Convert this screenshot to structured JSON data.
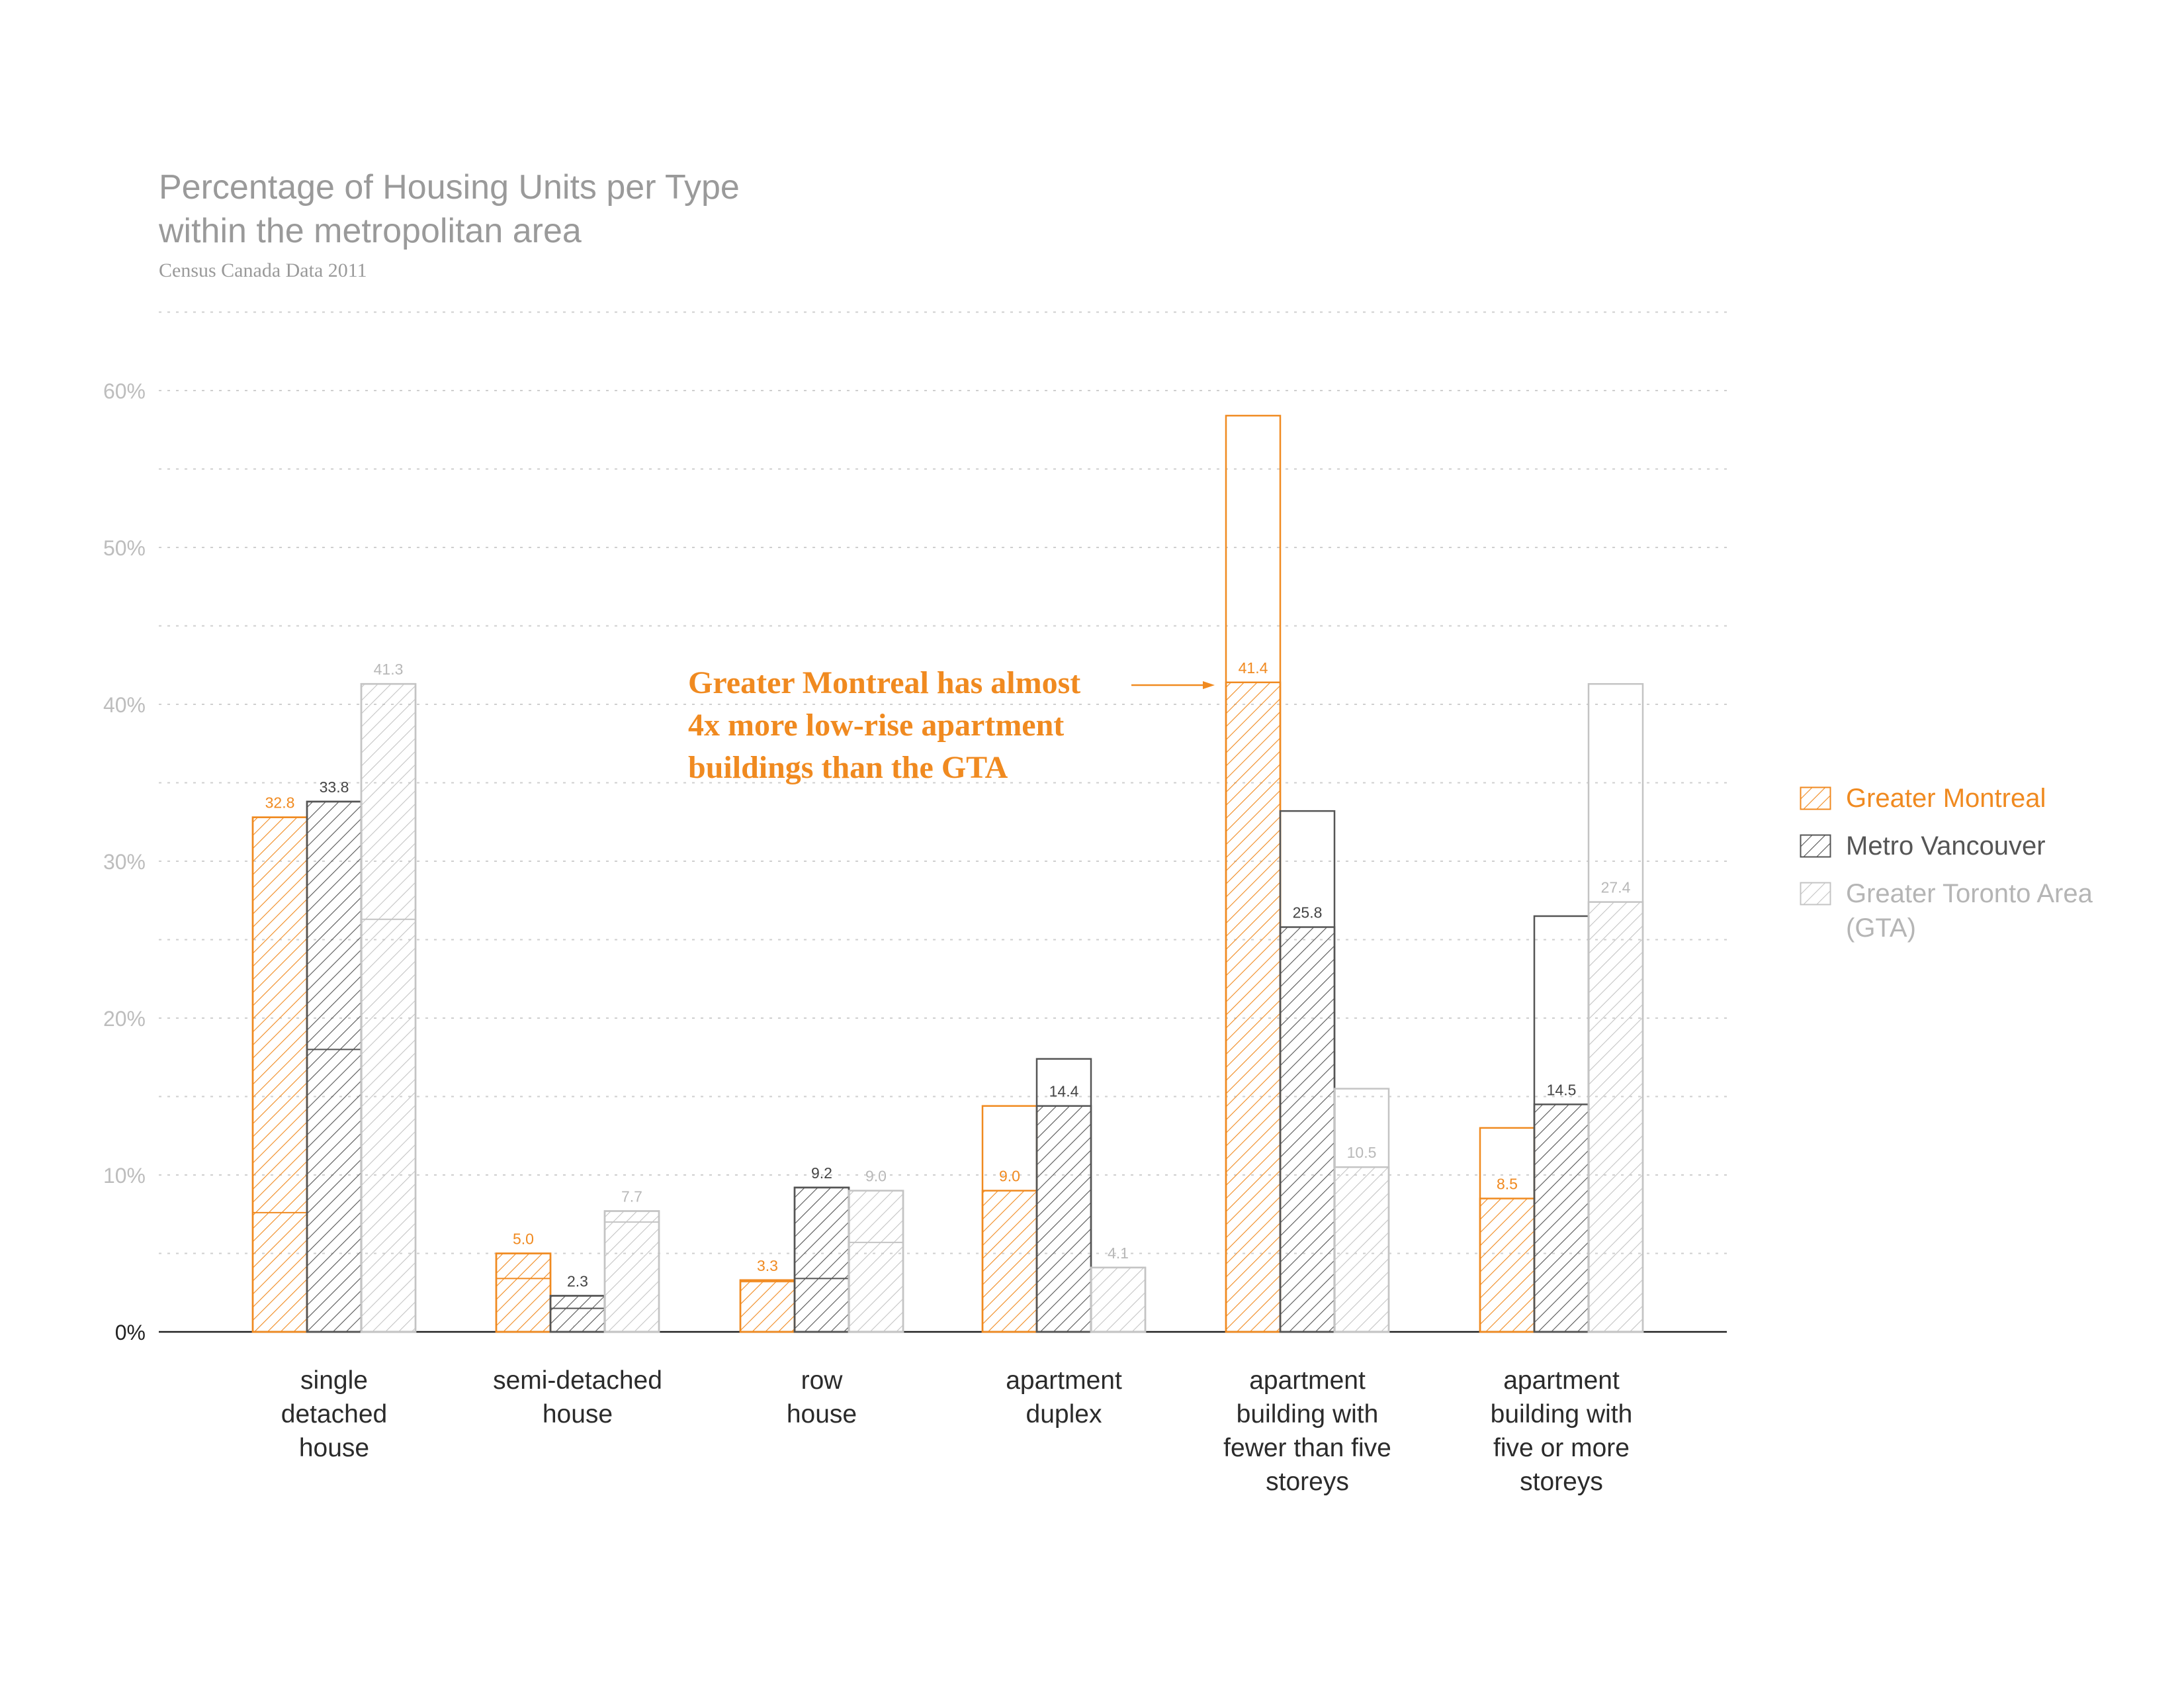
{
  "title_lines": [
    "Percentage of Housing Units per Type",
    "within the metropolitan area"
  ],
  "subtitle": "Census Canada Data 2011",
  "annotation_lines": [
    "Greater Montreal has almost",
    "4x more low-rise apartment",
    "buildings than the GTA"
  ],
  "colors": {
    "montreal": "#f08a20",
    "vancouver": "#555555",
    "toronto": "#c4c4c4",
    "gridline": "#cfcfcf",
    "axis": "#222222",
    "ticklabel": "#bdbdbd",
    "text": "#333333"
  },
  "legend": [
    {
      "label_lines": [
        "Greater Montreal"
      ],
      "color": "#f08a20"
    },
    {
      "label_lines": [
        "Metro Vancouver"
      ],
      "color": "#555555"
    },
    {
      "label_lines": [
        "Greater Toronto Area",
        "(GTA)"
      ],
      "color": "#c4c4c4"
    }
  ],
  "chart_data": {
    "type": "bar",
    "title": "Percentage of Housing Units per Type within the metropolitan area",
    "subtitle": "Census Canada Data 2011",
    "xlabel": "",
    "ylabel": "",
    "ylim": [
      0,
      65
    ],
    "yticks": [
      0,
      10,
      20,
      30,
      40,
      50,
      60
    ],
    "ytick_labels": [
      "0%",
      "10%",
      "20%",
      "30%",
      "40%",
      "50%",
      "60%"
    ],
    "grid": true,
    "legend_position": "right",
    "categories": [
      [
        "single",
        "detached",
        "house"
      ],
      [
        "semi-detached",
        "house"
      ],
      [
        "row",
        "house"
      ],
      [
        "apartment",
        "duplex"
      ],
      [
        "apartment",
        "building with",
        "fewer than five",
        "storeys"
      ],
      [
        "apartment",
        "building with",
        "five or more",
        "storeys"
      ]
    ],
    "series": [
      {
        "name": "Greater Montreal",
        "values": [
          32.8,
          5.0,
          3.3,
          9.0,
          41.4,
          8.5
        ],
        "value_labels": [
          "32.8",
          "5.0",
          "3.3",
          "9.0",
          "41.4",
          "8.5"
        ],
        "outline_values": [
          32.8,
          5.0,
          3.3,
          14.4,
          58.4,
          13.0
        ],
        "inner_line_values": [
          7.6,
          3.4,
          3.2,
          null,
          null,
          null
        ]
      },
      {
        "name": "Metro Vancouver",
        "values": [
          33.8,
          2.3,
          9.2,
          14.4,
          25.8,
          14.5
        ],
        "value_labels": [
          "33.8",
          "2.3",
          "9.2",
          "14.4",
          "25.8",
          "14.5"
        ],
        "outline_values": [
          33.8,
          2.3,
          9.2,
          17.4,
          33.2,
          26.5
        ],
        "inner_line_values": [
          18.0,
          1.5,
          3.4,
          null,
          null,
          null
        ]
      },
      {
        "name": "Greater Toronto Area (GTA)",
        "values": [
          41.3,
          7.7,
          9.0,
          4.1,
          10.5,
          27.4
        ],
        "value_labels": [
          "41.3",
          "7.7",
          "9.0",
          "4.1",
          "10.5",
          "27.4"
        ],
        "outline_values": [
          41.3,
          7.7,
          9.0,
          4.1,
          15.5,
          41.3
        ],
        "inner_line_values": [
          26.3,
          7.0,
          5.7,
          null,
          null,
          null
        ]
      }
    ]
  }
}
